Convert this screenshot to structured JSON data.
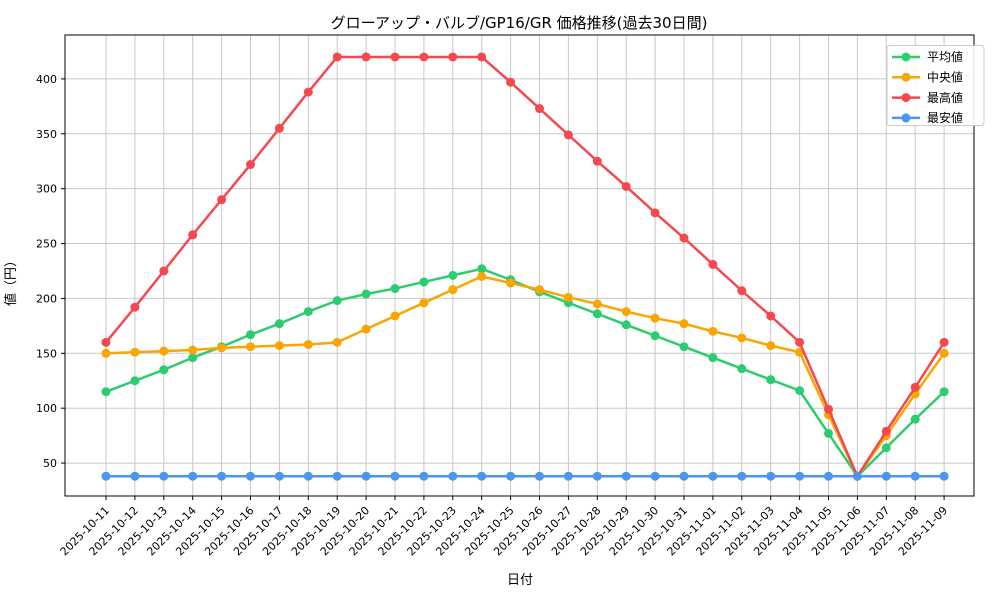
{
  "chart_data": {
    "type": "line",
    "title": "グローアップ・バルブ/GP16/GR 価格推移(過去30日間)",
    "xlabel": "日付",
    "ylabel": "値（円）",
    "x": [
      "2025-10-11",
      "2025-10-12",
      "2025-10-13",
      "2025-10-14",
      "2025-10-15",
      "2025-10-16",
      "2025-10-17",
      "2025-10-18",
      "2025-10-19",
      "2025-10-20",
      "2025-10-21",
      "2025-10-22",
      "2025-10-23",
      "2025-10-24",
      "2025-10-25",
      "2025-10-26",
      "2025-10-27",
      "2025-10-28",
      "2025-10-29",
      "2025-10-30",
      "2025-10-31",
      "2025-11-01",
      "2025-11-02",
      "2025-11-03",
      "2025-11-04",
      "2025-11-05",
      "2025-11-06",
      "2025-11-07",
      "2025-11-08",
      "2025-11-09"
    ],
    "series": [
      {
        "name": "平均値",
        "key": "average",
        "color": "#2ecc71",
        "values": [
          115,
          125,
          135,
          146,
          156,
          167,
          177,
          188,
          198,
          204,
          209,
          215,
          221,
          227,
          217,
          206,
          196,
          186,
          176,
          166,
          156,
          146,
          136,
          126,
          116,
          77,
          38,
          64,
          90,
          115
        ]
      },
      {
        "name": "中央値",
        "key": "median",
        "color": "#f9a602",
        "values": [
          150,
          151,
          152,
          153,
          155,
          156,
          157,
          158,
          160,
          172,
          184,
          196,
          208,
          220,
          214,
          208,
          201,
          195,
          188,
          182,
          177,
          170,
          164,
          157,
          151,
          94,
          38,
          75,
          113,
          150
        ]
      },
      {
        "name": "最高値",
        "key": "max",
        "color": "#f4494f",
        "values": [
          160,
          192,
          225,
          258,
          290,
          322,
          355,
          388,
          420,
          420,
          420,
          420,
          420,
          420,
          397,
          373,
          349,
          325,
          302,
          278,
          255,
          231,
          207,
          184,
          160,
          99,
          38,
          79,
          119,
          160
        ]
      },
      {
        "name": "最安値",
        "key": "min",
        "color": "#4b96f0",
        "values": [
          38,
          38,
          38,
          38,
          38,
          38,
          38,
          38,
          38,
          38,
          38,
          38,
          38,
          38,
          38,
          38,
          38,
          38,
          38,
          38,
          38,
          38,
          38,
          38,
          38,
          38,
          38,
          38,
          38,
          38
        ]
      }
    ],
    "yticks": [
      50,
      100,
      150,
      200,
      250,
      300,
      350,
      400
    ],
    "ylim": [
      20,
      440
    ],
    "grid": true,
    "grid_color": "#c8c8c8",
    "legend_position": "upper right"
  }
}
